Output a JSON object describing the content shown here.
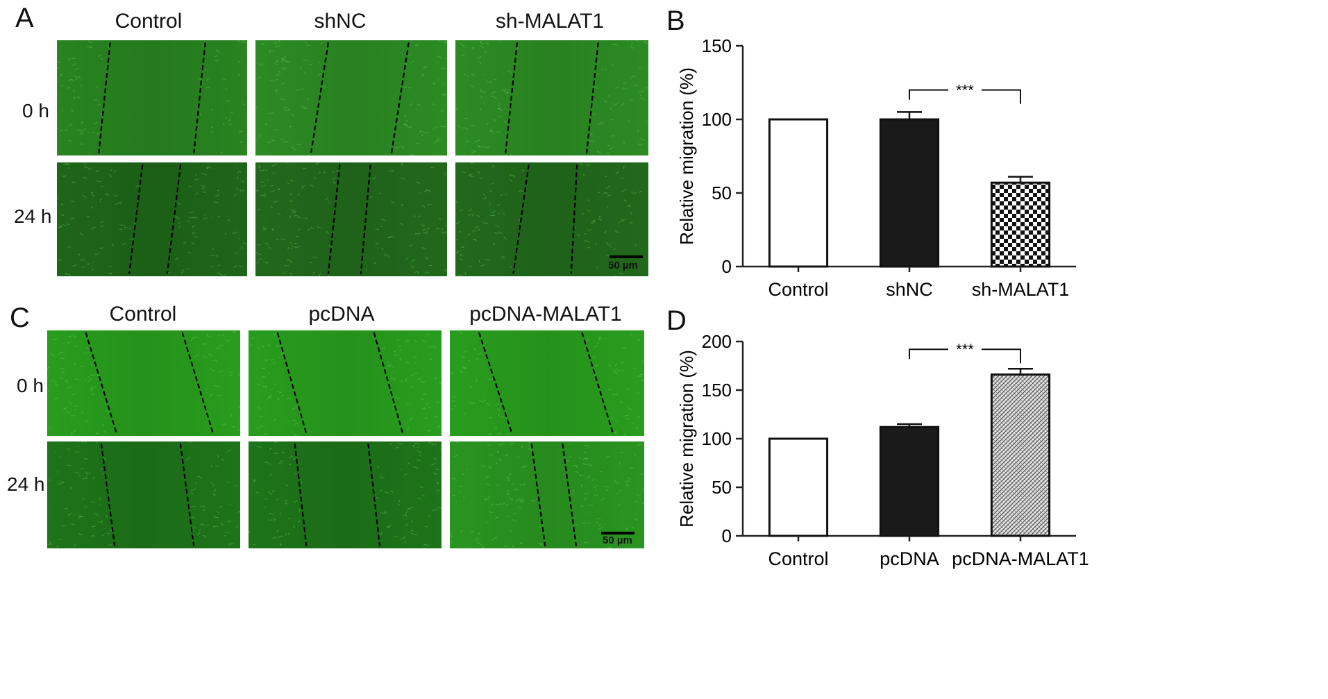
{
  "panels": {
    "A": {
      "letter": "A",
      "columns": [
        "Control",
        "shNC",
        "sh-MALAT1"
      ],
      "rows": [
        "0 h",
        "24 h"
      ],
      "scale_bar": "50 µm"
    },
    "B": {
      "letter": "B"
    },
    "C": {
      "letter": "C",
      "columns": [
        "Control",
        "pcDNA",
        "pcDNA-MALAT1"
      ],
      "rows": [
        "0 h",
        "24 h"
      ],
      "scale_bar": "50 µm"
    },
    "D": {
      "letter": "D"
    }
  },
  "colors": {
    "micro_dark": "#1f6b1a",
    "micro_bright": "#2aa51f",
    "bar_black": "#1a1a1a",
    "axis": "#222222"
  },
  "chart_data": [
    {
      "panel": "B",
      "type": "bar",
      "categories": [
        "Control",
        "shNC",
        "sh-MALAT1"
      ],
      "values": [
        100,
        100,
        57
      ],
      "errors": [
        0,
        5,
        4
      ],
      "fills": [
        "white",
        "black",
        "checker"
      ],
      "ylabel": "Relative migration (%)",
      "ylim": [
        0,
        150
      ],
      "yticks": [
        0,
        50,
        100,
        150
      ],
      "significance": {
        "from": 1,
        "to": 2,
        "label": "***"
      },
      "grid": false
    },
    {
      "panel": "D",
      "type": "bar",
      "categories": [
        "Control",
        "pcDNA",
        "pcDNA-MALAT1"
      ],
      "values": [
        100,
        112,
        166
      ],
      "errors": [
        0,
        3,
        6
      ],
      "fills": [
        "white",
        "black",
        "hatch"
      ],
      "ylabel": "Relative migration (%)",
      "ylim": [
        0,
        200
      ],
      "yticks": [
        0,
        50,
        100,
        150,
        200
      ],
      "significance": {
        "from": 1,
        "to": 2,
        "label": "***"
      },
      "grid": false
    }
  ]
}
